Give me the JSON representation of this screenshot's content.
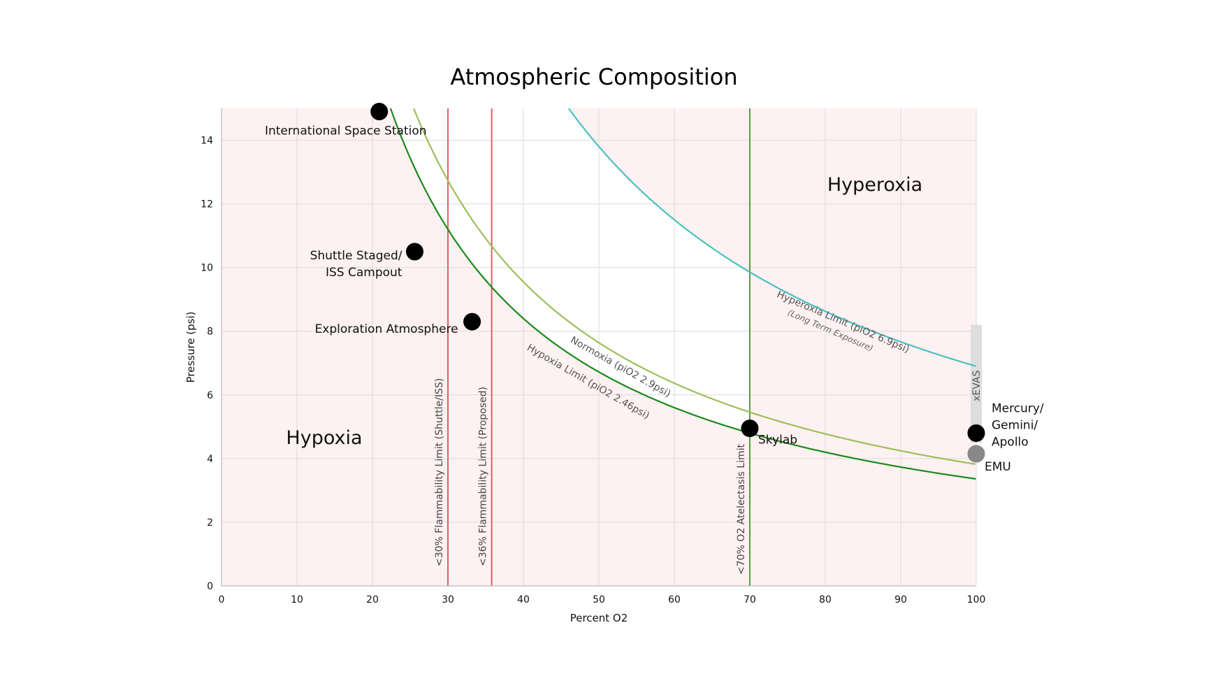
{
  "chart_data": {
    "type": "line",
    "title": "Atmospheric Composition",
    "xlabel": "Percent O2",
    "ylabel": "Pressure (psi)",
    "xlim": [
      0,
      100
    ],
    "ylim": [
      0,
      15
    ],
    "xticks": [
      "0",
      "10",
      "20",
      "30",
      "40",
      "50",
      "60",
      "70",
      "80",
      "90",
      "100"
    ],
    "yticks": [
      "0",
      "2",
      "4",
      "6",
      "8",
      "10",
      "12",
      "14"
    ],
    "grid": true,
    "regions": [
      {
        "name": "Hypoxia"
      },
      {
        "name": "Hyperoxia"
      }
    ],
    "series": [
      {
        "name": "Hypoxia Limit (piO2 2.46psi)",
        "constant": 3.36,
        "color": "#1a8a1a"
      },
      {
        "name": "Normoxia (piO2 2.9psi)",
        "constant": 3.82,
        "color": "#9bbf5a"
      },
      {
        "name": "Hyperoxia Limit (piO2 6.9psi)",
        "subtitle": "(Long Term Exposure)",
        "constant": 6.9,
        "color": "#4cc0c0"
      }
    ],
    "vertical_lines": [
      {
        "name": "<30% Flammability Limit (Shuttle/ISS)",
        "x": 30,
        "color": "#e06060"
      },
      {
        "name": "<36% Flammability Limit (Proposed)",
        "x": 35.8,
        "color": "#e06060"
      },
      {
        "name": "<70% O2 Atelectasis Limit",
        "x": 70,
        "color": "#5a9a4a"
      }
    ],
    "points": [
      {
        "label": "International Space Station",
        "x": 20.9,
        "y": 14.9,
        "color": "#000000"
      },
      {
        "label": "Shuttle Staged/\nISS Campout",
        "x": 25.6,
        "y": 10.5,
        "color": "#000000"
      },
      {
        "label": "Exploration Atmosphere",
        "x": 33.2,
        "y": 8.3,
        "color": "#000000"
      },
      {
        "label": "Skylab",
        "x": 70,
        "y": 4.95,
        "color": "#000000"
      },
      {
        "label": "Mercury/\nGemini/\nApollo",
        "x": 100,
        "y": 4.8,
        "color": "#000000"
      },
      {
        "label": "EMU",
        "x": 100,
        "y": 4.15,
        "color": "#888888"
      }
    ],
    "band": {
      "label": "xEVAS",
      "x": 100,
      "y_range": [
        4.5,
        8.2
      ],
      "color": "#dddddd"
    }
  }
}
